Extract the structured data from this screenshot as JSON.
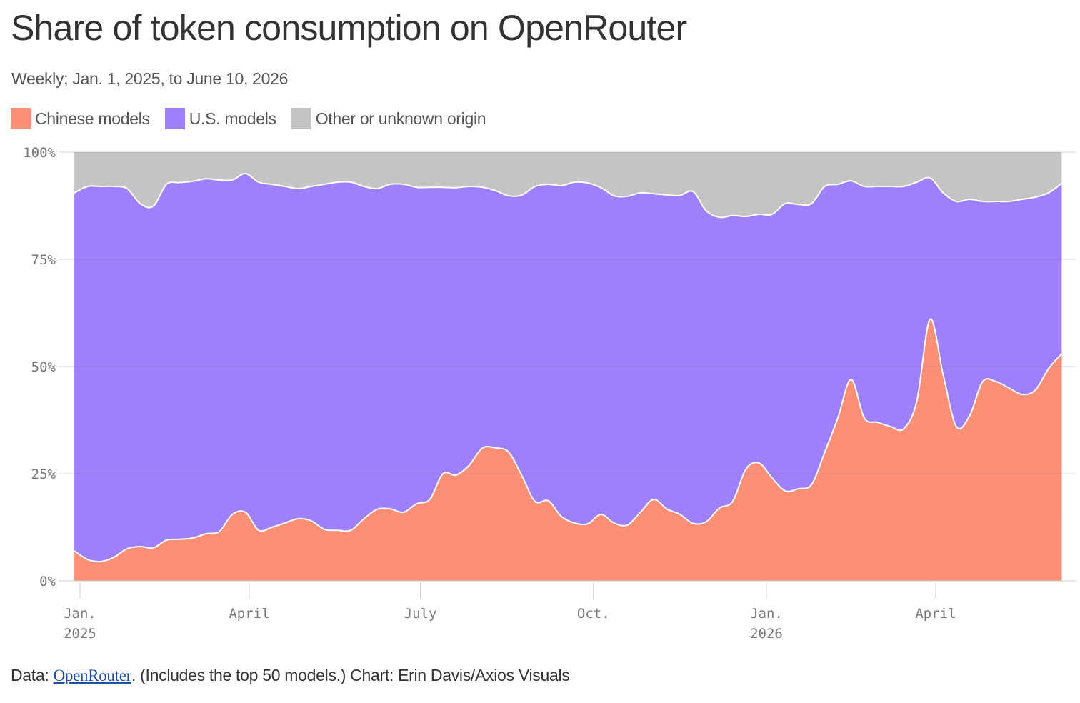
{
  "title": "Share of token consumption on OpenRouter",
  "subtitle": "Weekly; Jan. 1, 2025, to June 10, 2026",
  "legend": [
    {
      "label": "Chinese models",
      "color": "#fc8f76"
    },
    {
      "label": "U.S. models",
      "color": "#9e80fc"
    },
    {
      "label": "Other or unknown origin",
      "color": "#c4c4c4"
    }
  ],
  "footer": {
    "prefix": "Data: ",
    "link_text": "OpenRouter",
    "suffix": ". (Includes the top 50 models.) Chart: Erin Davis/Axios Visuals"
  },
  "chart_data": {
    "type": "area",
    "stacked": true,
    "normalized": true,
    "title": "Share of token consumption on OpenRouter",
    "subtitle": "Weekly; Jan. 1, 2025, to June 10, 2026",
    "xlabel": "",
    "ylabel": "",
    "ylim": [
      0,
      100
    ],
    "y_ticks": [
      "0%",
      "25%",
      "50%",
      "75%",
      "100%"
    ],
    "x_ticks": [
      {
        "date": "2025-01-01",
        "line1": "Jan.",
        "line2": "2025"
      },
      {
        "date": "2025-04-01",
        "line1": "April",
        "line2": ""
      },
      {
        "date": "2025-07-01",
        "line1": "July",
        "line2": ""
      },
      {
        "date": "2025-10-01",
        "line1": "Oct.",
        "line2": ""
      },
      {
        "date": "2026-01-01",
        "line1": "Jan.",
        "line2": "2026"
      },
      {
        "date": "2026-04-01",
        "line1": "April",
        "line2": ""
      }
    ],
    "grid": "horizontal",
    "x": [
      "2024-12-29",
      "2025-01-05",
      "2025-01-12",
      "2025-01-19",
      "2025-01-26",
      "2025-02-02",
      "2025-02-09",
      "2025-02-16",
      "2025-02-23",
      "2025-03-02",
      "2025-03-09",
      "2025-03-16",
      "2025-03-23",
      "2025-03-30",
      "2025-04-06",
      "2025-04-13",
      "2025-04-20",
      "2025-04-27",
      "2025-05-04",
      "2025-05-11",
      "2025-05-18",
      "2025-05-25",
      "2025-06-01",
      "2025-06-08",
      "2025-06-15",
      "2025-06-22",
      "2025-06-29",
      "2025-07-06",
      "2025-07-13",
      "2025-07-20",
      "2025-07-27",
      "2025-08-03",
      "2025-08-10",
      "2025-08-17",
      "2025-08-24",
      "2025-08-31",
      "2025-09-07",
      "2025-09-14",
      "2025-09-21",
      "2025-09-28",
      "2025-10-05",
      "2025-10-12",
      "2025-10-19",
      "2025-10-26",
      "2025-11-02",
      "2025-11-09",
      "2025-11-16",
      "2025-11-23",
      "2025-11-30",
      "2025-12-07",
      "2025-12-14",
      "2025-12-21",
      "2025-12-28",
      "2026-01-04",
      "2026-01-11",
      "2026-01-18",
      "2026-01-25",
      "2026-02-01",
      "2026-02-08",
      "2026-02-15",
      "2026-02-22",
      "2026-03-01",
      "2026-03-08",
      "2026-03-15",
      "2026-03-22",
      "2026-03-29",
      "2026-04-05",
      "2026-04-12",
      "2026-04-19",
      "2026-04-26",
      "2026-05-03",
      "2026-05-10",
      "2026-05-17",
      "2026-05-24",
      "2026-05-31",
      "2026-06-07"
    ],
    "series": [
      {
        "name": "Chinese models",
        "values": [
          7,
          5,
          4.5,
          5.5,
          7.5,
          8,
          7.7,
          9.5,
          9.7,
          10,
          11,
          11.5,
          15.5,
          16,
          11.8,
          12.5,
          13.5,
          14.5,
          14,
          12,
          11.8,
          11.8,
          14.5,
          16.7,
          16.8,
          16,
          18,
          19,
          25,
          24.7,
          27,
          31,
          31,
          30,
          24.5,
          18.5,
          18.7,
          15,
          13.5,
          13.3,
          15.5,
          13.5,
          13,
          16,
          19,
          16.8,
          15.5,
          13.4,
          13.8,
          17,
          18.5,
          26,
          27.5,
          24,
          21,
          21.5,
          22.5,
          30,
          38,
          47,
          38,
          37,
          36,
          35.5,
          42,
          61,
          48,
          36,
          38.5,
          46.5,
          46.5,
          45,
          43.5,
          44.5,
          49.5,
          53
        ]
      },
      {
        "name": "U.S. models",
        "values": [
          83.5,
          87,
          87.5,
          86.5,
          84,
          80,
          79.7,
          83,
          83.2,
          83.2,
          82.8,
          82,
          78,
          79,
          81.2,
          80,
          78.5,
          77,
          78,
          80.5,
          81.2,
          81.2,
          77.5,
          74.8,
          75.7,
          76.5,
          73.8,
          72.8,
          66.8,
          67,
          65,
          60.8,
          60,
          59.8,
          65.5,
          73.5,
          73.8,
          77.2,
          79.5,
          79.5,
          76.2,
          76.3,
          76.7,
          74.5,
          71.3,
          73.2,
          74.4,
          77.4,
          72.5,
          67.8,
          66.7,
          59,
          58,
          61.5,
          67,
          66.3,
          65.5,
          62,
          54.5,
          46.3,
          54,
          55,
          56,
          56.5,
          51,
          33,
          42.5,
          52.5,
          50.5,
          42,
          42,
          43.5,
          45.5,
          45,
          41,
          39.7
        ]
      },
      {
        "name": "Other or unknown origin",
        "values": [
          9.5,
          8,
          8,
          8,
          8.5,
          12,
          12.6,
          7.5,
          7.1,
          6.8,
          6.2,
          6.5,
          6.5,
          5,
          7,
          7.5,
          8,
          8.5,
          8,
          7.5,
          7,
          7,
          8,
          8.5,
          7.5,
          7.5,
          8.2,
          8.2,
          8.2,
          8.3,
          8,
          8.2,
          9,
          10.2,
          10,
          8,
          7.5,
          7.8,
          7,
          7.2,
          8.3,
          10.2,
          10.3,
          9.5,
          9.7,
          10,
          10.1,
          9.2,
          13.7,
          15.2,
          14.8,
          15,
          14.5,
          14.5,
          12,
          12.2,
          12,
          8,
          7.5,
          6.7,
          8,
          8,
          8,
          8,
          7,
          6,
          9.5,
          11.5,
          11,
          11.5,
          11.5,
          11.5,
          11,
          10.5,
          9.5,
          7.3
        ]
      }
    ]
  }
}
